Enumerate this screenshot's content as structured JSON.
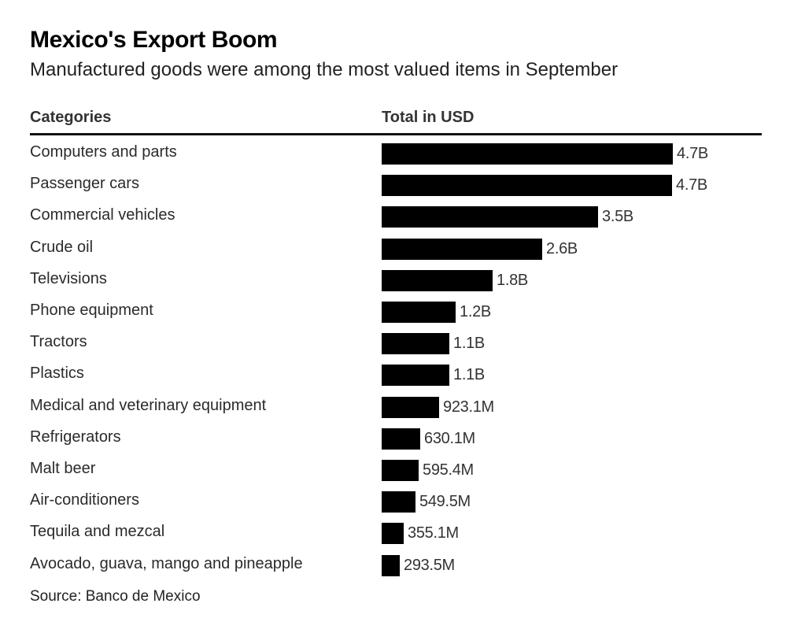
{
  "header": {
    "title": "Mexico's Export Boom",
    "subtitle": "Manufactured goods were among the most valued items in September"
  },
  "columns": {
    "category_header": "Categories",
    "value_header": "Total in USD"
  },
  "source": "Source: Banco de Mexico",
  "colors": {
    "bar": "#000000"
  },
  "chart_data": {
    "type": "bar",
    "orientation": "horizontal",
    "title": "Mexico's Export Boom",
    "subtitle": "Manufactured goods were among the most valued items in September",
    "grid": false,
    "categories": [
      "Computers and parts",
      "Passenger cars",
      "Commercial vehicles",
      "Crude oil",
      "Televisions",
      "Phone equipment",
      "Tractors",
      "Plastics",
      "Medical and veterinary equipment",
      "Refrigerators",
      "Malt beer",
      "Air-conditioners",
      "Tequila and mezcal",
      "Avocado, guava, mango and pineapple"
    ],
    "values": [
      4.71,
      4.7,
      3.5,
      2.6,
      1.8,
      1.2,
      1.1,
      1.09,
      0.9231,
      0.6301,
      0.5954,
      0.5495,
      0.3551,
      0.2935
    ],
    "labels": [
      "4.7B",
      "4.7B",
      "3.5B",
      "2.6B",
      "1.8B",
      "1.2B",
      "1.1B",
      "1.1B",
      "923.1M",
      "630.1M",
      "595.4M",
      "549.5M",
      "355.1M",
      "293.5M"
    ]
  }
}
